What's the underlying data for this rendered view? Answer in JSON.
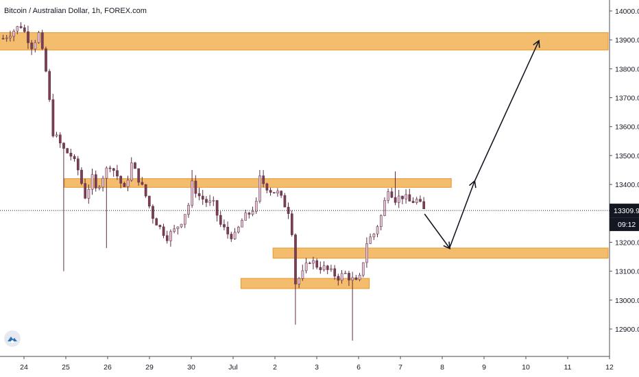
{
  "title": "Bitcoin / Australian Dollar, 1h, FOREX.com",
  "colors": {
    "zone": "#f2b255",
    "zone_border": "#e8952a",
    "axis_bg": "#ffffff",
    "price_badge": "#131722",
    "up": "#e0bfd0",
    "down": "#7a3e55"
  },
  "logo_icon": "tradingview-cloud-icon",
  "chart_data": {
    "type": "candlestick",
    "ylim": [
      12850,
      14040
    ],
    "y_ticks": [
      14000,
      13900,
      13800,
      13700,
      13600,
      13500,
      13400,
      13300,
      13200,
      13100,
      13000,
      12900
    ],
    "x_ticks": [
      "24",
      "25",
      "26",
      "29",
      "30",
      "Jul",
      "2",
      "3",
      "6",
      "7",
      "8",
      "9",
      "10",
      "11",
      "12"
    ],
    "last_price": "13309.9",
    "countdown": "09:12",
    "path": [
      [
        0,
        13905
      ],
      [
        2,
        13925
      ],
      [
        5,
        13950
      ],
      [
        8,
        13880
      ],
      [
        10,
        13920
      ],
      [
        12,
        13790
      ],
      [
        14,
        13580
      ],
      [
        17,
        13520
      ],
      [
        19,
        13500
      ],
      [
        21,
        13450
      ],
      [
        23,
        13360
      ],
      [
        25,
        13420
      ],
      [
        26,
        13380
      ],
      [
        28,
        13430
      ],
      [
        30,
        13470
      ],
      [
        32,
        13430
      ],
      [
        34,
        13380
      ],
      [
        36,
        13470
      ],
      [
        38,
        13420
      ],
      [
        40,
        13360
      ],
      [
        42,
        13290
      ],
      [
        44,
        13250
      ],
      [
        46,
        13220
      ],
      [
        48,
        13240
      ],
      [
        50,
        13275
      ],
      [
        52,
        13330
      ],
      [
        53,
        13400
      ],
      [
        55,
        13360
      ],
      [
        57,
        13340
      ],
      [
        59,
        13330
      ],
      [
        61,
        13260
      ],
      [
        63,
        13230
      ],
      [
        65,
        13220
      ],
      [
        67,
        13275
      ],
      [
        69,
        13300
      ],
      [
        71,
        13330
      ],
      [
        72,
        13420
      ],
      [
        73,
        13405
      ],
      [
        75,
        13380
      ],
      [
        77,
        13370
      ],
      [
        79,
        13330
      ],
      [
        80,
        13310
      ],
      [
        81,
        13240
      ],
      [
        82,
        13060
      ],
      [
        84,
        13090
      ],
      [
        86,
        13140
      ],
      [
        88,
        13120
      ],
      [
        90,
        13110
      ],
      [
        92,
        13095
      ],
      [
        94,
        13080
      ],
      [
        96,
        13090
      ],
      [
        98,
        13070
      ],
      [
        99,
        13060
      ],
      [
        100,
        13075
      ],
      [
        102,
        13200
      ],
      [
        104,
        13230
      ],
      [
        106,
        13290
      ],
      [
        108,
        13390
      ],
      [
        110,
        13350
      ],
      [
        112,
        13360
      ],
      [
        114,
        13340
      ],
      [
        116,
        13345
      ],
      [
        118,
        13310
      ]
    ],
    "wicks": [
      {
        "t": 17,
        "low": 13100
      },
      {
        "t": 29,
        "low": 13180
      },
      {
        "t": 53,
        "high": 13450
      },
      {
        "t": 72,
        "high": 13450
      },
      {
        "t": 82,
        "low": 12915
      },
      {
        "t": 98,
        "low": 12860
      },
      {
        "t": 110,
        "high": 13445
      }
    ],
    "zones": [
      {
        "t_start": -1,
        "t_end": 170,
        "low": 13865,
        "high": 13925
      },
      {
        "t_start": 17.5,
        "t_end": 126,
        "low": 13390,
        "high": 13420
      },
      {
        "t_start": 76,
        "t_end": 170,
        "low": 13145,
        "high": 13180
      },
      {
        "t_start": 67,
        "t_end": 103,
        "low": 13040,
        "high": 13075
      }
    ],
    "projection": [
      {
        "t": 118.5,
        "price": 13298
      },
      {
        "t": 125.5,
        "price": 13180
      },
      {
        "t": 132.5,
        "price": 13410
      },
      {
        "t": 150.5,
        "price": 13895
      }
    ]
  }
}
